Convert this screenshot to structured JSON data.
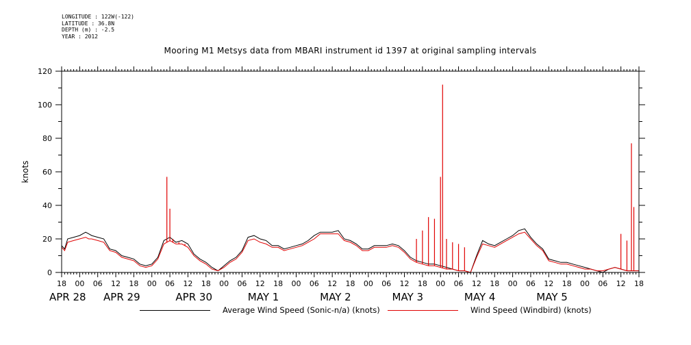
{
  "meta": {
    "longitude": "LONGITUDE : 122W(-122)",
    "latitude": "LATITUDE : 36.8N",
    "depth": "DEPTH (m) : -2.5",
    "year": "YEAR : 2012"
  },
  "chart_data": {
    "type": "line",
    "title": "Mooring M1 Metsys data from MBARI instrument id 1397 at original sampling intervals",
    "ylabel": "knots",
    "xlabel": "",
    "ylim": [
      0,
      120
    ],
    "yticks": [
      0,
      20,
      40,
      60,
      80,
      100,
      120
    ],
    "x_range_hours": [
      -6,
      186
    ],
    "hour_ticks": [
      {
        "h": -6,
        "label": "18"
      },
      {
        "h": 0,
        "label": "00"
      },
      {
        "h": 6,
        "label": "06"
      },
      {
        "h": 12,
        "label": "12"
      },
      {
        "h": 18,
        "label": "18"
      },
      {
        "h": 24,
        "label": "00"
      },
      {
        "h": 30,
        "label": "06"
      },
      {
        "h": 36,
        "label": "12"
      },
      {
        "h": 42,
        "label": "18"
      },
      {
        "h": 48,
        "label": "00"
      },
      {
        "h": 54,
        "label": "06"
      },
      {
        "h": 60,
        "label": "12"
      },
      {
        "h": 66,
        "label": "18"
      },
      {
        "h": 72,
        "label": "00"
      },
      {
        "h": 78,
        "label": "06"
      },
      {
        "h": 84,
        "label": "12"
      },
      {
        "h": 90,
        "label": "18"
      },
      {
        "h": 96,
        "label": "00"
      },
      {
        "h": 102,
        "label": "06"
      },
      {
        "h": 108,
        "label": "12"
      },
      {
        "h": 114,
        "label": "18"
      },
      {
        "h": 120,
        "label": "00"
      },
      {
        "h": 126,
        "label": "06"
      },
      {
        "h": 132,
        "label": "12"
      },
      {
        "h": 138,
        "label": "18"
      },
      {
        "h": 144,
        "label": "00"
      },
      {
        "h": 150,
        "label": "06"
      },
      {
        "h": 156,
        "label": "12"
      },
      {
        "h": 162,
        "label": "18"
      },
      {
        "h": 168,
        "label": "00"
      },
      {
        "h": 174,
        "label": "06"
      },
      {
        "h": 180,
        "label": "12"
      },
      {
        "h": 186,
        "label": "18"
      }
    ],
    "day_labels": [
      {
        "h": -6,
        "label": "APR 28"
      },
      {
        "h": 12,
        "label": "APR 29"
      },
      {
        "h": 36,
        "label": "APR 30"
      },
      {
        "h": 60,
        "label": "MAY  1"
      },
      {
        "h": 84,
        "label": "MAY  2"
      },
      {
        "h": 108,
        "label": "MAY  3"
      },
      {
        "h": 132,
        "label": "MAY  4"
      },
      {
        "h": 156,
        "label": "MAY  5"
      }
    ],
    "series": [
      {
        "name": "Average Wind Speed (Sonic-n/a) (knots)",
        "color": "#000000",
        "x": [
          -6,
          -5,
          -4,
          -2,
          0,
          2,
          3,
          4,
          6,
          8,
          10,
          12,
          14,
          16,
          18,
          20,
          22,
          24,
          26,
          28,
          30,
          32,
          34,
          36,
          38,
          40,
          42,
          44,
          46,
          48,
          50,
          52,
          54,
          56,
          58,
          60,
          62,
          64,
          66,
          68,
          70,
          72,
          74,
          76,
          78,
          80,
          82,
          84,
          86,
          88,
          90,
          92,
          94,
          96,
          98,
          100,
          102,
          104,
          106,
          108,
          110,
          112,
          114,
          116,
          118,
          120,
          122,
          124,
          126,
          128,
          130,
          132,
          134,
          136,
          138,
          140,
          142,
          144,
          146,
          148,
          150,
          152,
          154,
          156,
          158,
          160,
          162,
          164,
          166,
          168,
          170,
          172,
          174,
          176,
          178,
          180,
          182,
          184,
          186
        ],
        "y": [
          16,
          14,
          20,
          21,
          22,
          24,
          23,
          22,
          21,
          20,
          14,
          13,
          10,
          9,
          8,
          5,
          4,
          5,
          9,
          19,
          21,
          18,
          19,
          17,
          11,
          8,
          6,
          3,
          1,
          4,
          7,
          9,
          13,
          21,
          22,
          20,
          19,
          16,
          16,
          14,
          15,
          16,
          17,
          19,
          22,
          24,
          24,
          24,
          25,
          20,
          19,
          17,
          14,
          14,
          16,
          16,
          16,
          17,
          16,
          13,
          9,
          7,
          6,
          5,
          5,
          4,
          3,
          2,
          1,
          1,
          0,
          10,
          19,
          17,
          16,
          18,
          20,
          22,
          25,
          26,
          21,
          17,
          14,
          8,
          7,
          6,
          6,
          5,
          4,
          3,
          2,
          1,
          0,
          2,
          3,
          2,
          1,
          1,
          1
        ]
      },
      {
        "name": "Wind Speed (Windbird) (knots)",
        "color": "#e00000",
        "x": [
          -6,
          -5,
          -4,
          -2,
          0,
          2,
          3,
          4,
          6,
          8,
          10,
          12,
          14,
          16,
          18,
          20,
          22,
          24,
          26,
          28,
          30,
          32,
          34,
          36,
          38,
          40,
          42,
          44,
          46,
          48,
          50,
          52,
          54,
          56,
          58,
          60,
          62,
          64,
          66,
          68,
          70,
          72,
          74,
          76,
          78,
          80,
          82,
          84,
          86,
          88,
          90,
          92,
          94,
          96,
          98,
          100,
          102,
          104,
          106,
          108,
          110,
          112,
          114,
          116,
          118,
          120,
          122,
          124,
          126,
          128,
          130,
          132,
          134,
          136,
          138,
          140,
          142,
          144,
          146,
          148,
          150,
          152,
          154,
          156,
          158,
          160,
          162,
          164,
          166,
          168,
          170,
          172,
          174,
          176,
          178,
          180,
          182,
          184,
          186
        ],
        "y": [
          15,
          13,
          18,
          19,
          20,
          21,
          20,
          20,
          19,
          18,
          13,
          12,
          9,
          8,
          7,
          4,
          3,
          4,
          8,
          17,
          19,
          17,
          17,
          15,
          10,
          7,
          5,
          2,
          1,
          3,
          6,
          8,
          12,
          19,
          20,
          18,
          17,
          15,
          15,
          13,
          14,
          15,
          16,
          18,
          20,
          23,
          23,
          23,
          23,
          19,
          18,
          16,
          13,
          13,
          15,
          15,
          15,
          16,
          15,
          12,
          8,
          6,
          5,
          4,
          4,
          3,
          2,
          2,
          1,
          1,
          0,
          9,
          17,
          16,
          15,
          17,
          19,
          21,
          23,
          24,
          20,
          16,
          13,
          7,
          6,
          5,
          5,
          4,
          3,
          2,
          2,
          1,
          1,
          2,
          3,
          2,
          1,
          1,
          1
        ]
      }
    ],
    "spikes": [
      {
        "h": 29,
        "y": 57
      },
      {
        "h": 30,
        "y": 38
      },
      {
        "h": 31,
        "y": 20
      },
      {
        "h": 33,
        "y": 18
      },
      {
        "h": 35,
        "y": 17
      },
      {
        "h": 112,
        "y": 20
      },
      {
        "h": 114,
        "y": 25
      },
      {
        "h": 116,
        "y": 33
      },
      {
        "h": 118,
        "y": 32
      },
      {
        "h": 120,
        "y": 57
      },
      {
        "h": 120.7,
        "y": 112
      },
      {
        "h": 122,
        "y": 20
      },
      {
        "h": 124,
        "y": 18
      },
      {
        "h": 126,
        "y": 17
      },
      {
        "h": 128,
        "y": 15
      },
      {
        "h": 180,
        "y": 23
      },
      {
        "h": 182,
        "y": 19
      },
      {
        "h": 183.5,
        "y": 77
      },
      {
        "h": 184.3,
        "y": 39
      }
    ],
    "legend_placement": "bottom",
    "grid": false
  }
}
